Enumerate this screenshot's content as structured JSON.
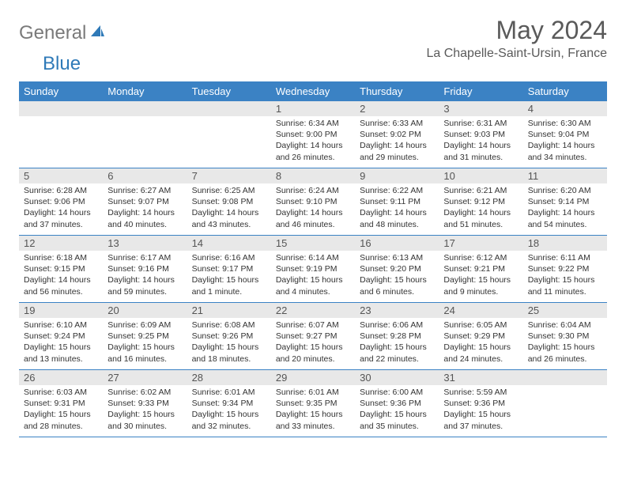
{
  "logo": {
    "general": "General",
    "blue": "Blue"
  },
  "title": "May 2024",
  "location": "La Chapelle-Saint-Ursin, France",
  "weekdays": [
    "Sunday",
    "Monday",
    "Tuesday",
    "Wednesday",
    "Thursday",
    "Friday",
    "Saturday"
  ],
  "colors": {
    "header_bg": "#3b82c4",
    "daynum_bg": "#e8e8e8",
    "logo_gray": "#7a7a7a",
    "logo_blue": "#2f7ab8"
  },
  "weeks": [
    [
      null,
      null,
      null,
      {
        "n": "1",
        "sr": "6:34 AM",
        "ss": "9:00 PM",
        "dh": "14",
        "dm": "26"
      },
      {
        "n": "2",
        "sr": "6:33 AM",
        "ss": "9:02 PM",
        "dh": "14",
        "dm": "29"
      },
      {
        "n": "3",
        "sr": "6:31 AM",
        "ss": "9:03 PM",
        "dh": "14",
        "dm": "31"
      },
      {
        "n": "4",
        "sr": "6:30 AM",
        "ss": "9:04 PM",
        "dh": "14",
        "dm": "34"
      }
    ],
    [
      {
        "n": "5",
        "sr": "6:28 AM",
        "ss": "9:06 PM",
        "dh": "14",
        "dm": "37"
      },
      {
        "n": "6",
        "sr": "6:27 AM",
        "ss": "9:07 PM",
        "dh": "14",
        "dm": "40"
      },
      {
        "n": "7",
        "sr": "6:25 AM",
        "ss": "9:08 PM",
        "dh": "14",
        "dm": "43"
      },
      {
        "n": "8",
        "sr": "6:24 AM",
        "ss": "9:10 PM",
        "dh": "14",
        "dm": "46"
      },
      {
        "n": "9",
        "sr": "6:22 AM",
        "ss": "9:11 PM",
        "dh": "14",
        "dm": "48"
      },
      {
        "n": "10",
        "sr": "6:21 AM",
        "ss": "9:12 PM",
        "dh": "14",
        "dm": "51"
      },
      {
        "n": "11",
        "sr": "6:20 AM",
        "ss": "9:14 PM",
        "dh": "14",
        "dm": "54"
      }
    ],
    [
      {
        "n": "12",
        "sr": "6:18 AM",
        "ss": "9:15 PM",
        "dh": "14",
        "dm": "56"
      },
      {
        "n": "13",
        "sr": "6:17 AM",
        "ss": "9:16 PM",
        "dh": "14",
        "dm": "59"
      },
      {
        "n": "14",
        "sr": "6:16 AM",
        "ss": "9:17 PM",
        "dh": "15",
        "dm": "1"
      },
      {
        "n": "15",
        "sr": "6:14 AM",
        "ss": "9:19 PM",
        "dh": "15",
        "dm": "4"
      },
      {
        "n": "16",
        "sr": "6:13 AM",
        "ss": "9:20 PM",
        "dh": "15",
        "dm": "6"
      },
      {
        "n": "17",
        "sr": "6:12 AM",
        "ss": "9:21 PM",
        "dh": "15",
        "dm": "9"
      },
      {
        "n": "18",
        "sr": "6:11 AM",
        "ss": "9:22 PM",
        "dh": "15",
        "dm": "11"
      }
    ],
    [
      {
        "n": "19",
        "sr": "6:10 AM",
        "ss": "9:24 PM",
        "dh": "15",
        "dm": "13"
      },
      {
        "n": "20",
        "sr": "6:09 AM",
        "ss": "9:25 PM",
        "dh": "15",
        "dm": "16"
      },
      {
        "n": "21",
        "sr": "6:08 AM",
        "ss": "9:26 PM",
        "dh": "15",
        "dm": "18"
      },
      {
        "n": "22",
        "sr": "6:07 AM",
        "ss": "9:27 PM",
        "dh": "15",
        "dm": "20"
      },
      {
        "n": "23",
        "sr": "6:06 AM",
        "ss": "9:28 PM",
        "dh": "15",
        "dm": "22"
      },
      {
        "n": "24",
        "sr": "6:05 AM",
        "ss": "9:29 PM",
        "dh": "15",
        "dm": "24"
      },
      {
        "n": "25",
        "sr": "6:04 AM",
        "ss": "9:30 PM",
        "dh": "15",
        "dm": "26"
      }
    ],
    [
      {
        "n": "26",
        "sr": "6:03 AM",
        "ss": "9:31 PM",
        "dh": "15",
        "dm": "28"
      },
      {
        "n": "27",
        "sr": "6:02 AM",
        "ss": "9:33 PM",
        "dh": "15",
        "dm": "30"
      },
      {
        "n": "28",
        "sr": "6:01 AM",
        "ss": "9:34 PM",
        "dh": "15",
        "dm": "32"
      },
      {
        "n": "29",
        "sr": "6:01 AM",
        "ss": "9:35 PM",
        "dh": "15",
        "dm": "33"
      },
      {
        "n": "30",
        "sr": "6:00 AM",
        "ss": "9:36 PM",
        "dh": "15",
        "dm": "35"
      },
      {
        "n": "31",
        "sr": "5:59 AM",
        "ss": "9:36 PM",
        "dh": "15",
        "dm": "37"
      },
      null
    ]
  ]
}
